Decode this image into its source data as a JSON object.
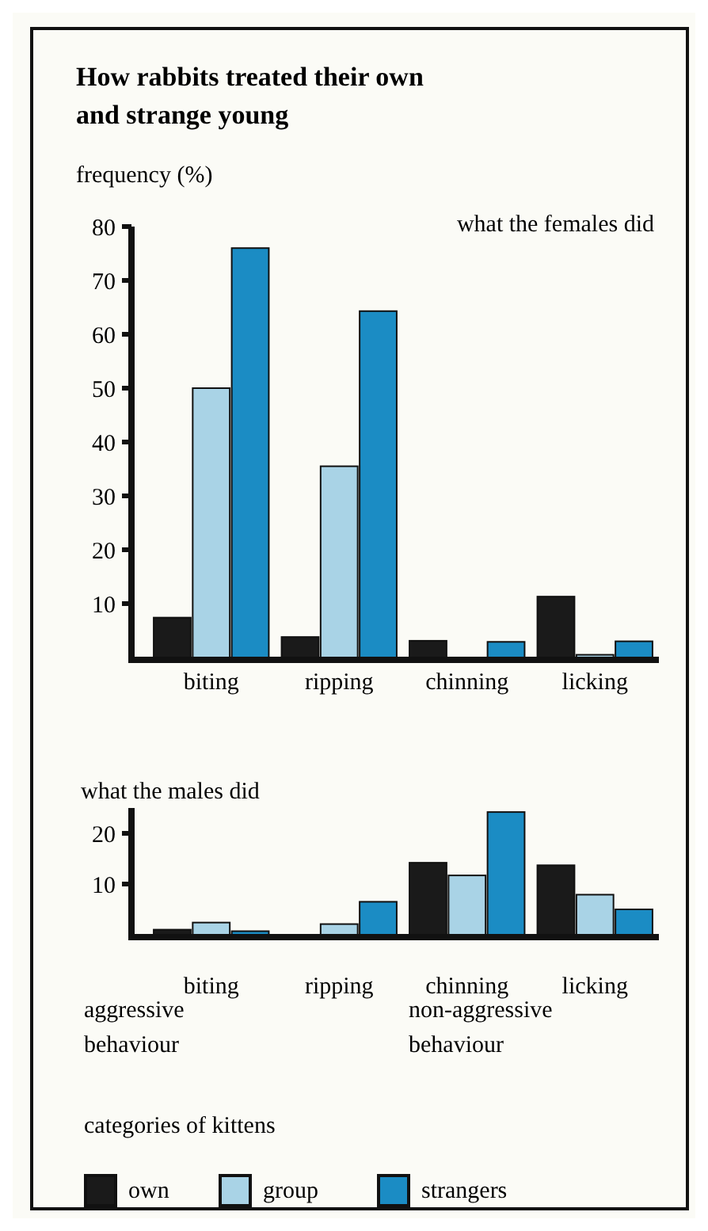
{
  "chart_data": [
    {
      "type": "bar",
      "title": "How rabbits treated their own and strange young",
      "subtitle": "what the females did",
      "ylabel": "frequency (%)",
      "categories": [
        "biting",
        "ripping",
        "chinning",
        "licking"
      ],
      "tick_labels": "y",
      "ylim": [
        0,
        80
      ],
      "yticks": [
        10,
        20,
        30,
        40,
        50,
        60,
        70,
        80
      ],
      "grid": false,
      "legend": false,
      "series": [
        {
          "color": "#1a1a1a",
          "values": [
            7.4,
            3.8,
            3.1,
            11.3
          ]
        },
        {
          "color": "#a9d3e6",
          "values": [
            50,
            35.5,
            0,
            0.5
          ]
        },
        {
          "color": "#1b8cc4",
          "values": [
            76,
            64.3,
            2.9,
            3
          ]
        }
      ]
    },
    {
      "type": "bar",
      "title": "what the males did",
      "categories": [
        "biting",
        "ripping",
        "chinning",
        "licking"
      ],
      "ylim": [
        0,
        25
      ],
      "yticks": [
        10,
        20
      ],
      "grid": false,
      "legend": "bottom",
      "legend_title": "categories of kittens",
      "annotations": [
        "aggressive behaviour",
        "non-aggressive behaviour"
      ],
      "series": [
        {
          "name": "own",
          "color": "#1a1a1a",
          "values": [
            1,
            0,
            14.2,
            13.7
          ]
        },
        {
          "name": "group",
          "color": "#a9d3e6",
          "values": [
            2.4,
            2.1,
            11.7,
            7.9
          ]
        },
        {
          "name": "strangers",
          "color": "#1b8cc4",
          "values": [
            0.7,
            6.5,
            24.2,
            5
          ]
        }
      ]
    }
  ]
}
